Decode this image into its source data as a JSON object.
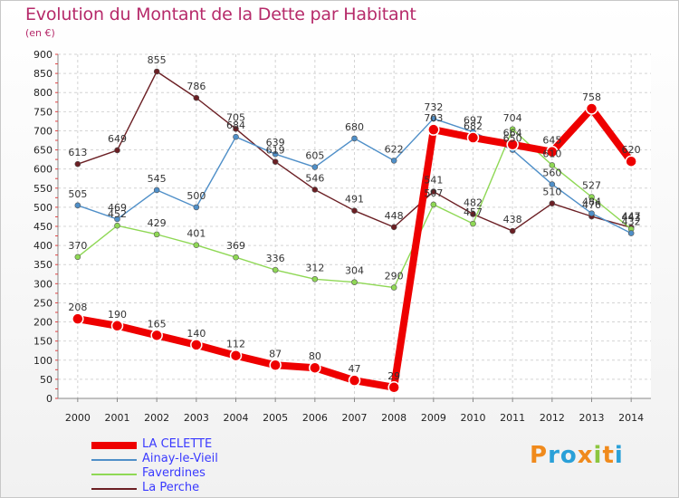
{
  "title": "Evolution du Montant de la Dette par Habitant",
  "unit_label": "(en €)",
  "brand": {
    "text": "Proxiti",
    "letters": [
      "P",
      "r",
      "o",
      "x",
      "i",
      "t",
      "i"
    ],
    "colors": [
      "#f08a1c",
      "#2aa0d8",
      "#2aa0d8",
      "#f08a1c",
      "#8cc63f",
      "#f08a1c",
      "#2aa0d8"
    ]
  },
  "chart_data": {
    "type": "line",
    "title": "Evolution du Montant de la Dette par Habitant",
    "ylabel": "(en €)",
    "xlabel": "",
    "x": [
      "2000",
      "2001",
      "2002",
      "2003",
      "2004",
      "2005",
      "2006",
      "2007",
      "2008",
      "2009",
      "2010",
      "2011",
      "2012",
      "2013",
      "2014"
    ],
    "ylim": [
      0,
      900
    ],
    "yticks": [
      0,
      50,
      100,
      150,
      200,
      250,
      300,
      350,
      400,
      450,
      500,
      550,
      600,
      650,
      700,
      750,
      800,
      850,
      900
    ],
    "grid": true,
    "legend_position": "bottom-left",
    "series": [
      {
        "name": "La Perche",
        "color": "#6b1f24",
        "values": [
          613,
          649,
          855,
          786,
          705,
          619,
          546,
          491,
          448,
          541,
          482,
          438,
          510,
          476,
          447
        ],
        "labels": [
          "613",
          "649",
          "855",
          "786",
          "705",
          "619",
          "546",
          "491",
          "448",
          "541",
          "482",
          "438",
          "510",
          "476",
          "447"
        ]
      },
      {
        "name": "Faverdines",
        "color": "#8fd855",
        "values": [
          370,
          452,
          429,
          401,
          369,
          336,
          312,
          304,
          290,
          507,
          457,
          704,
          610,
          527,
          443
        ],
        "labels": [
          "370",
          "452",
          "429",
          "401",
          "369",
          "336",
          "312",
          "304",
          "290",
          "507",
          "457",
          "704",
          "610",
          "527",
          "443"
        ]
      },
      {
        "name": "Ainay-le-Vieil",
        "color": "#4f8fc8",
        "values": [
          505,
          469,
          545,
          500,
          684,
          639,
          605,
          680,
          622,
          732,
          697,
          650,
          560,
          484,
          432
        ],
        "labels": [
          "505",
          "469",
          "545",
          "500",
          "684",
          "639",
          "605",
          "680",
          "622",
          "732",
          "697",
          "650",
          "560",
          "484",
          "432"
        ]
      },
      {
        "name": "LA CELETTE",
        "color": "#ee0000",
        "values": [
          208,
          190,
          165,
          140,
          112,
          87,
          80,
          47,
          29,
          703,
          682,
          664,
          645,
          758,
          620
        ],
        "labels": [
          "208",
          "190",
          "165",
          "140",
          "112",
          "87",
          "80",
          "47",
          "29",
          "703",
          "682",
          "664",
          "645",
          "758",
          "620"
        ]
      }
    ]
  },
  "legend": [
    {
      "name": "LA CELETTE",
      "color": "#ee0000",
      "width": 8
    },
    {
      "name": "Ainay-le-Vieil",
      "color": "#4f8fc8",
      "width": 2
    },
    {
      "name": "Faverdines",
      "color": "#8fd855",
      "width": 2
    },
    {
      "name": "La Perche",
      "color": "#6b1f24",
      "width": 2
    }
  ]
}
